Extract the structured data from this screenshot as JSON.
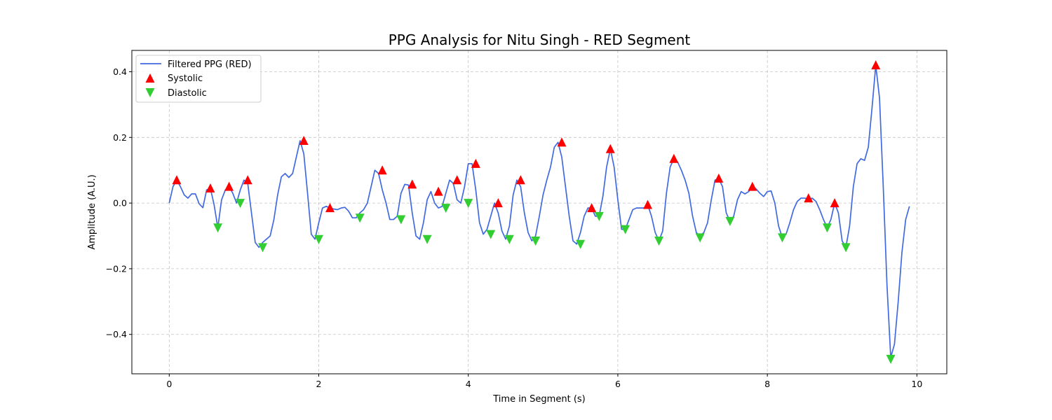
{
  "chart_data": {
    "type": "line",
    "title": "PPG Analysis for Nitu Singh - RED Segment",
    "xlabel": "Time in Segment (s)",
    "ylabel": "Amplitude (A.U.)",
    "xlim": [
      -0.5,
      10.4
    ],
    "ylim": [
      -0.52,
      0.465
    ],
    "xticks": [
      0,
      2,
      4,
      6,
      8,
      10
    ],
    "xtick_labels": [
      "0",
      "2",
      "4",
      "6",
      "8",
      "10"
    ],
    "yticks": [
      -0.4,
      -0.2,
      0.0,
      0.2,
      0.4
    ],
    "ytick_labels": [
      "−0.4",
      "−0.2",
      "0.0",
      "0.2",
      "0.4"
    ],
    "grid": true,
    "legend_position": "top-left",
    "colors": {
      "line": "#4169e1",
      "systolic": "#ff0000",
      "diastolic": "#32cd32"
    },
    "series": [
      {
        "name": "Filtered PPG (RED)",
        "kind": "line",
        "x": [
          0.0,
          0.05,
          0.1,
          0.15,
          0.2,
          0.25,
          0.3,
          0.35,
          0.4,
          0.45,
          0.5,
          0.55,
          0.6,
          0.65,
          0.7,
          0.75,
          0.8,
          0.85,
          0.9,
          0.95,
          1.0,
          1.05,
          1.1,
          1.15,
          1.2,
          1.25,
          1.3,
          1.35,
          1.4,
          1.45,
          1.5,
          1.55,
          1.6,
          1.65,
          1.7,
          1.75,
          1.8,
          1.85,
          1.9,
          1.95,
          2.0,
          2.05,
          2.1,
          2.15,
          2.2,
          2.25,
          2.3,
          2.35,
          2.4,
          2.45,
          2.5,
          2.55,
          2.6,
          2.65,
          2.7,
          2.75,
          2.8,
          2.85,
          2.9,
          2.95,
          3.0,
          3.05,
          3.1,
          3.15,
          3.2,
          3.25,
          3.3,
          3.35,
          3.4,
          3.45,
          3.5,
          3.55,
          3.6,
          3.65,
          3.7,
          3.75,
          3.8,
          3.85,
          3.9,
          3.95,
          4.0,
          4.05,
          4.1,
          4.15,
          4.2,
          4.25,
          4.3,
          4.35,
          4.4,
          4.45,
          4.5,
          4.55,
          4.6,
          4.65,
          4.7,
          4.75,
          4.8,
          4.85,
          4.9,
          4.95,
          5.0,
          5.05,
          5.1,
          5.15,
          5.2,
          5.25,
          5.3,
          5.35,
          5.4,
          5.45,
          5.5,
          5.55,
          5.6,
          5.65,
          5.7,
          5.75,
          5.8,
          5.85,
          5.9,
          5.95,
          6.0,
          6.05,
          6.1,
          6.15,
          6.2,
          6.25,
          6.3,
          6.35,
          6.4,
          6.45,
          6.5,
          6.55,
          6.6,
          6.65,
          6.7,
          6.75,
          6.8,
          6.85,
          6.9,
          6.95,
          7.0,
          7.05,
          7.1,
          7.15,
          7.2,
          7.25,
          7.3,
          7.35,
          7.4,
          7.45,
          7.5,
          7.55,
          7.6,
          7.65,
          7.7,
          7.75,
          7.8,
          7.85,
          7.9,
          7.95,
          8.0,
          8.05,
          8.1,
          8.15,
          8.2,
          8.25,
          8.3,
          8.35,
          8.4,
          8.45,
          8.5,
          8.55,
          8.6,
          8.65,
          8.7,
          8.75,
          8.8,
          8.85,
          8.9,
          8.95,
          9.0,
          9.05,
          9.1,
          9.15,
          9.2,
          9.25,
          9.3,
          9.35,
          9.4,
          9.45,
          9.5,
          9.55,
          9.6,
          9.65,
          9.7,
          9.75,
          9.8,
          9.85,
          9.9
        ],
        "y": [
          0.0,
          0.05,
          0.07,
          0.05,
          0.025,
          0.015,
          0.028,
          0.028,
          -0.002,
          -0.014,
          0.04,
          0.045,
          -0.005,
          -0.075,
          0.01,
          0.04,
          0.05,
          0.03,
          0.0,
          0.04,
          0.07,
          0.06,
          -0.03,
          -0.12,
          -0.135,
          -0.12,
          -0.11,
          -0.1,
          -0.05,
          0.025,
          0.08,
          0.09,
          0.078,
          0.09,
          0.14,
          0.19,
          0.15,
          0.03,
          -0.095,
          -0.11,
          -0.06,
          -0.015,
          -0.01,
          -0.015,
          -0.018,
          -0.02,
          -0.015,
          -0.013,
          -0.025,
          -0.045,
          -0.045,
          -0.03,
          -0.02,
          0.0,
          0.05,
          0.1,
          0.09,
          0.04,
          0.0,
          -0.05,
          -0.05,
          -0.04,
          0.03,
          0.057,
          0.055,
          -0.03,
          -0.1,
          -0.11,
          -0.06,
          0.01,
          0.035,
          0.0,
          -0.015,
          -0.01,
          0.03,
          0.07,
          0.06,
          0.01,
          0.0,
          0.05,
          0.12,
          0.12,
          0.04,
          -0.06,
          -0.095,
          -0.08,
          -0.04,
          0.0,
          -0.03,
          -0.085,
          -0.11,
          -0.07,
          0.025,
          0.07,
          0.05,
          -0.03,
          -0.09,
          -0.115,
          -0.1,
          -0.04,
          0.025,
          0.07,
          0.11,
          0.17,
          0.185,
          0.14,
          0.05,
          -0.04,
          -0.115,
          -0.125,
          -0.09,
          -0.04,
          -0.015,
          -0.015,
          -0.04,
          -0.04,
          0.02,
          0.11,
          0.165,
          0.11,
          0.01,
          -0.08,
          -0.08,
          -0.05,
          -0.02,
          -0.015,
          -0.015,
          -0.015,
          -0.005,
          -0.04,
          -0.09,
          -0.115,
          -0.085,
          0.03,
          0.11,
          0.135,
          0.125,
          0.1,
          0.07,
          0.03,
          -0.04,
          -0.09,
          -0.1,
          -0.09,
          -0.06,
          0.01,
          0.07,
          0.075,
          0.05,
          -0.03,
          -0.055,
          -0.04,
          0.01,
          0.035,
          0.028,
          0.035,
          0.05,
          0.043,
          0.03,
          0.02,
          0.035,
          0.037,
          0.0,
          -0.07,
          -0.105,
          -0.095,
          -0.06,
          -0.02,
          0.005,
          0.015,
          0.015,
          0.012,
          0.015,
          0.005,
          -0.02,
          -0.05,
          -0.075,
          -0.05,
          0.0,
          -0.03,
          -0.115,
          -0.135,
          -0.07,
          0.05,
          0.12,
          0.135,
          0.13,
          0.17,
          0.29,
          0.42,
          0.32,
          0.05,
          -0.25,
          -0.47,
          -0.43,
          -0.3,
          -0.15,
          -0.05,
          -0.01
        ]
      },
      {
        "name": "Systolic",
        "kind": "markers",
        "marker": "triangle-up",
        "x": [
          0.1,
          0.55,
          0.8,
          1.05,
          1.8,
          2.15,
          2.85,
          3.25,
          3.6,
          3.85,
          4.1,
          4.4,
          4.7,
          5.25,
          5.65,
          5.9,
          6.4,
          6.75,
          7.35,
          7.8,
          8.55,
          8.9,
          9.45
        ],
        "y": [
          0.07,
          0.045,
          0.05,
          0.07,
          0.19,
          -0.015,
          0.1,
          0.057,
          0.035,
          0.07,
          0.12,
          0.0,
          0.07,
          0.185,
          -0.015,
          0.165,
          -0.005,
          0.135,
          0.075,
          0.05,
          0.015,
          0.0,
          0.42
        ]
      },
      {
        "name": "Diastolic",
        "kind": "markers",
        "marker": "triangle-down",
        "x": [
          0.65,
          0.95,
          1.25,
          2.0,
          2.55,
          3.1,
          3.45,
          3.7,
          4.0,
          4.3,
          4.55,
          4.9,
          5.5,
          5.75,
          6.1,
          6.55,
          7.1,
          7.5,
          8.2,
          8.8,
          9.05,
          9.65
        ],
        "y": [
          -0.075,
          0.0,
          -0.135,
          -0.11,
          -0.045,
          -0.05,
          -0.11,
          -0.015,
          0.0,
          -0.095,
          -0.11,
          -0.115,
          -0.125,
          -0.04,
          -0.08,
          -0.115,
          -0.105,
          -0.055,
          -0.105,
          -0.075,
          -0.135,
          -0.475
        ]
      }
    ]
  }
}
